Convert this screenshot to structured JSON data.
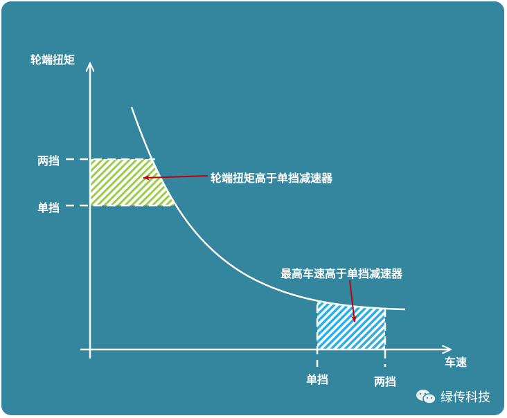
{
  "axes": {
    "y_label": "轮端扭矩",
    "x_label": "车速"
  },
  "y_ticks": {
    "two_speed": "两挡",
    "single_speed": "单挡"
  },
  "x_ticks": {
    "single_speed": "单挡",
    "two_speed": "两挡"
  },
  "annotations": {
    "torque": "轮端扭矩高于单挡减速器",
    "speed": "最高车速高于单挡减速器"
  },
  "watermark": {
    "icon": "wechat-icon",
    "text": "绿传科技"
  },
  "colors": {
    "background": "#33869e",
    "torque_hatch": "#9ccc4a",
    "speed_hatch": "#29aee8",
    "arrow": "#c0000c",
    "lines": "#ffffff"
  }
}
